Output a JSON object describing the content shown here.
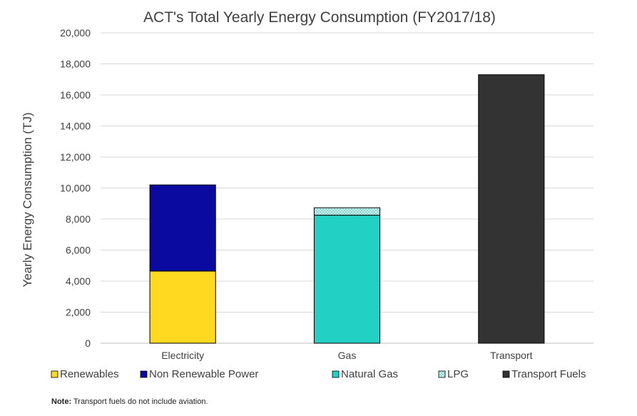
{
  "chart_data": {
    "type": "bar",
    "stacked": true,
    "title": "ACT's Total Yearly Energy Consumption (FY2017/18)",
    "xlabel": "",
    "ylabel": "Yearly Energy Consumption (TJ)",
    "ylim": [
      0,
      20000
    ],
    "yticks": [
      "0",
      "2,000",
      "4,000",
      "6,000",
      "8,000",
      "10,000",
      "12,000",
      "14,000",
      "16,000",
      "18,000",
      "20,000"
    ],
    "grid": true,
    "legend_position": "bottom",
    "categories": [
      "Electricity",
      "Gas",
      "Transport"
    ],
    "series": [
      {
        "name": "Renewables",
        "color": "#FFD820",
        "values": [
          4650,
          0,
          0
        ]
      },
      {
        "name": "Non Renewable Power",
        "color": "#0A0AA0",
        "values": [
          5550,
          0,
          0
        ]
      },
      {
        "name": "Natural Gas",
        "color": "#22D1C4",
        "values": [
          0,
          8250,
          0
        ]
      },
      {
        "name": "LPG",
        "color": "#B8EEEA",
        "pattern": "dotted",
        "values": [
          0,
          480,
          0
        ]
      },
      {
        "name": "Transport Fuels",
        "color": "#333333",
        "values": [
          0,
          0,
          17300
        ]
      }
    ]
  },
  "note": {
    "label": "Note:",
    "text": " Transport fuels do not include aviation."
  }
}
